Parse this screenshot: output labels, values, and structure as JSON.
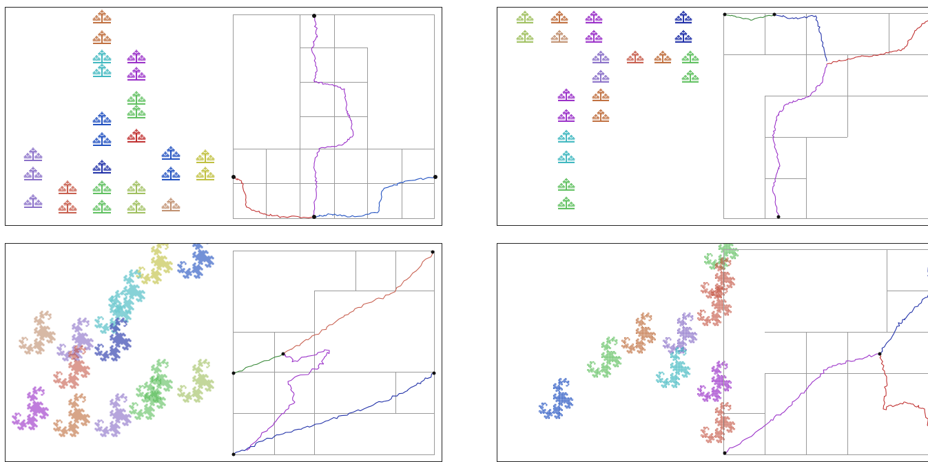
{
  "panels": [
    {
      "id": "top-left",
      "type": "tree-fractal-and-boundary-curves"
    },
    {
      "id": "top-right",
      "type": "tree-fractal-and-boundary-curves"
    },
    {
      "id": "bottom-left",
      "type": "dragon-fractal-and-boundary-curves"
    },
    {
      "id": "bottom-right",
      "type": "dragon-fractal-and-boundary-curves"
    }
  ],
  "colors": {
    "frame": "#222222",
    "grid": "#999999",
    "vertex": "#111111",
    "red": "#c03030",
    "blue": "#2050c0",
    "purple": "#9a30c8",
    "green": "#3a8a3a",
    "navy": "#2030a8",
    "salmon": "#c86050",
    "orange": "#c07040",
    "cyan": "#40b8c0",
    "lime": "#60c060",
    "yellow": "#c0c040",
    "lavender": "#8a70c8",
    "tan": "#c09070",
    "sage": "#a0c060",
    "pink": "#c07080"
  }
}
